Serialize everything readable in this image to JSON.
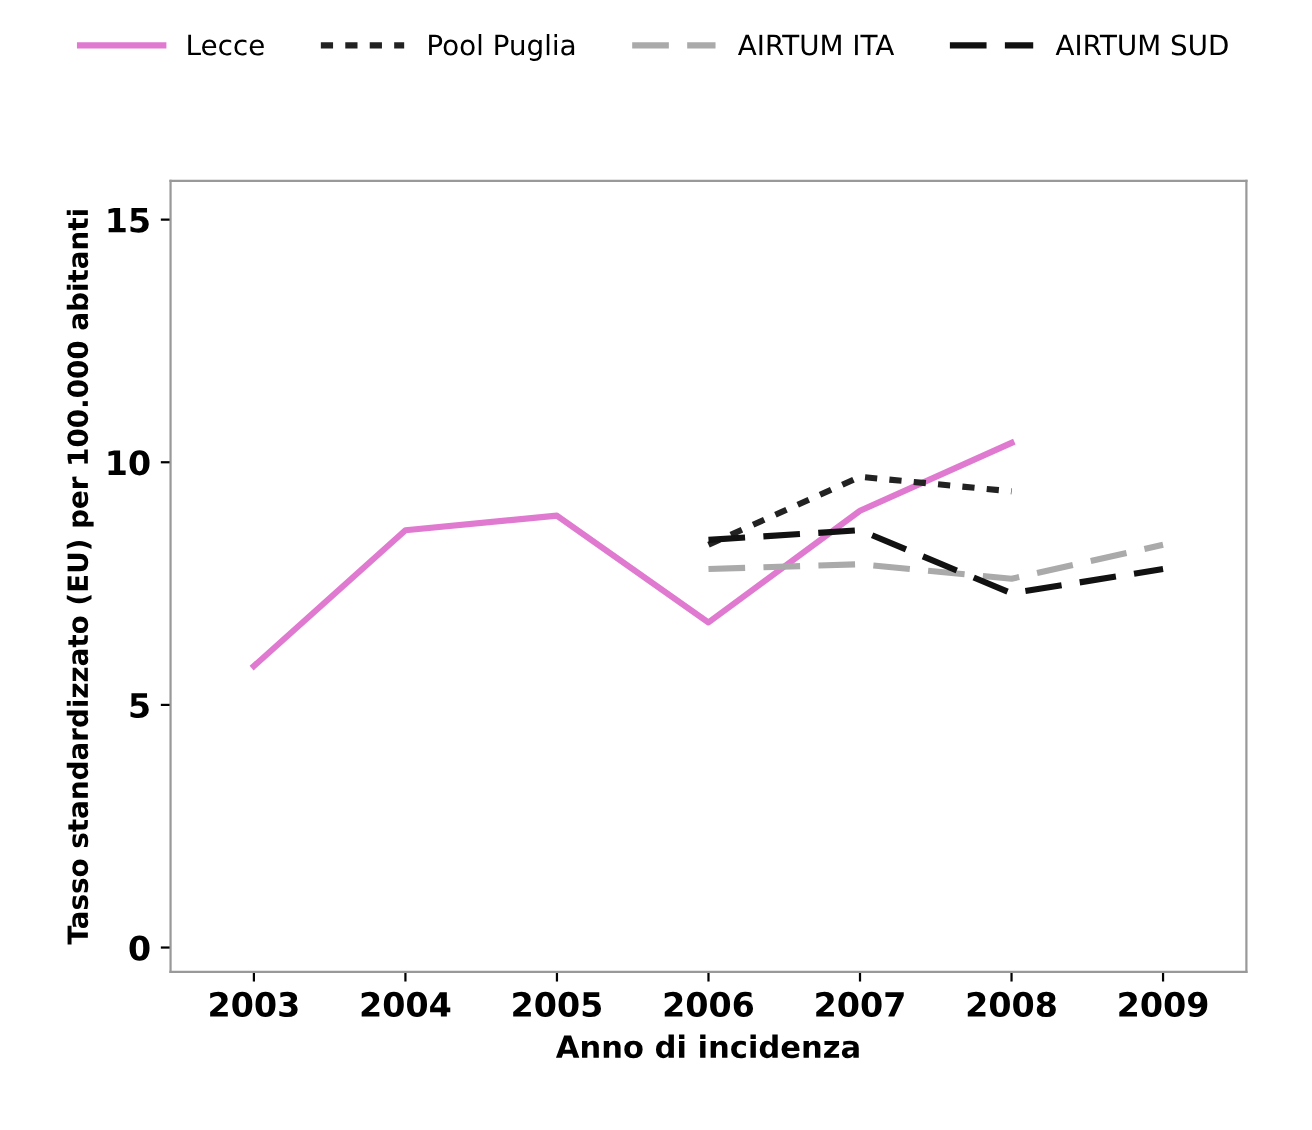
{
  "chart_data": {
    "type": "line",
    "xlabel": "Anno di incidenza",
    "ylabel": "Tasso standardizzato (EU) per 100.000 abitanti",
    "categories": [
      "2003",
      "2004",
      "2005",
      "2006",
      "2007",
      "2008",
      "2009"
    ],
    "series": [
      {
        "name": "Lecce",
        "color": "#e07ad0",
        "line_style": "solid",
        "values": [
          5.8,
          8.6,
          8.9,
          6.7,
          9.0,
          10.4,
          null
        ]
      },
      {
        "name": "Pool Puglia",
        "color": "#222222",
        "line_style": "dotted",
        "values": [
          null,
          null,
          null,
          8.3,
          9.7,
          9.4,
          null
        ]
      },
      {
        "name": "AIRTUM ITA",
        "color": "#aaaaaa",
        "line_style": "dashed",
        "values": [
          null,
          null,
          null,
          7.8,
          7.9,
          7.6,
          8.3
        ]
      },
      {
        "name": "AIRTUM SUD",
        "color": "#111111",
        "line_style": "dashed",
        "values": [
          null,
          null,
          null,
          8.4,
          8.6,
          7.3,
          7.8
        ]
      }
    ],
    "ylim": [
      -0.5,
      15.8
    ],
    "yticks": [
      0,
      5,
      10,
      15
    ],
    "legend": "top",
    "grid": false,
    "marker": "none"
  }
}
